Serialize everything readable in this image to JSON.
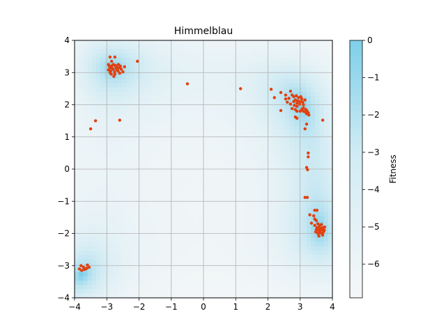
{
  "chart_data": {
    "type": "scatter",
    "title": "Himmelblau",
    "xlabel": "",
    "ylabel": "",
    "xlim": [
      -4,
      4
    ],
    "ylim": [
      -4,
      4
    ],
    "xticks": [
      -4,
      -3,
      -2,
      -1,
      0,
      1,
      2,
      3,
      4
    ],
    "yticks": [
      -4,
      -3,
      -2,
      -1,
      0,
      1,
      2,
      3,
      4
    ],
    "grid": true,
    "background_heatmap": {
      "description": "Fitness landscape shading (negative Himmelblau, log-scaled)",
      "minima": [
        [
          3.0,
          2.0
        ],
        [
          -2.805,
          3.131
        ],
        [
          -3.779,
          -3.283
        ],
        [
          3.584,
          -1.848
        ]
      ]
    },
    "colorbar": {
      "label": "Fitness",
      "range": [
        -6.9,
        0
      ],
      "ticks": [
        0,
        -1,
        -2,
        -3,
        -4,
        -5,
        -6
      ],
      "tick_labels": [
        "0",
        "−1",
        "−2",
        "−3",
        "−4",
        "−5",
        "−6"
      ],
      "color_high": "#7ecfe9",
      "color_low": "#f5f7f8"
    },
    "colors": {
      "points": "#e2400e",
      "grid": "#b0b0b0"
    },
    "series": [
      {
        "points": [
          [
            -2.9,
            3.48
          ],
          [
            -2.75,
            3.48
          ],
          [
            -2.95,
            3.25
          ],
          [
            -2.85,
            3.35
          ],
          [
            -2.8,
            3.1
          ],
          [
            -2.7,
            3.2
          ],
          [
            -2.6,
            3.15
          ],
          [
            -2.9,
            3.0
          ],
          [
            -2.75,
            2.95
          ],
          [
            -2.65,
            3.05
          ],
          [
            -2.55,
            3.1
          ],
          [
            -2.85,
            3.2
          ],
          [
            -2.8,
            3.25
          ],
          [
            -2.72,
            3.18
          ],
          [
            -2.68,
            3.08
          ],
          [
            -2.9,
            3.15
          ],
          [
            -2.95,
            3.08
          ],
          [
            -2.6,
            2.98
          ],
          [
            -2.5,
            3.02
          ],
          [
            -2.78,
            2.88
          ],
          [
            -2.82,
            3.12
          ],
          [
            -2.74,
            3.22
          ],
          [
            -2.64,
            3.25
          ],
          [
            -2.88,
            3.05
          ],
          [
            -2.7,
            3.12
          ],
          [
            -2.76,
            3.02
          ],
          [
            -2.86,
            2.95
          ],
          [
            -2.66,
            3.14
          ],
          [
            -2.58,
            3.2
          ],
          [
            -2.92,
            3.2
          ],
          [
            -2.45,
            3.18
          ],
          [
            -2.05,
            3.35
          ],
          [
            -2.6,
            1.52
          ],
          [
            -3.35,
            1.5
          ],
          [
            -3.5,
            1.25
          ],
          [
            -0.5,
            2.65
          ],
          [
            1.15,
            2.5
          ],
          [
            2.1,
            2.48
          ],
          [
            2.2,
            2.22
          ],
          [
            2.4,
            2.38
          ],
          [
            2.4,
            1.82
          ],
          [
            2.55,
            2.3
          ],
          [
            2.6,
            2.08
          ],
          [
            2.55,
            2.18
          ],
          [
            2.7,
            2.42
          ],
          [
            2.65,
            2.2
          ],
          [
            2.7,
            2.02
          ],
          [
            2.75,
            1.88
          ],
          [
            2.8,
            2.25
          ],
          [
            2.85,
            2.15
          ],
          [
            2.9,
            2.05
          ],
          [
            2.95,
            2.22
          ],
          [
            2.8,
            2.1
          ],
          [
            2.9,
            1.95
          ],
          [
            3.0,
            2.1
          ],
          [
            3.05,
            2.18
          ],
          [
            3.1,
            2.0
          ],
          [
            2.75,
            2.3
          ],
          [
            2.88,
            2.28
          ],
          [
            2.98,
            2.02
          ],
          [
            2.82,
            1.98
          ],
          [
            2.92,
            2.12
          ],
          [
            3.02,
            2.25
          ],
          [
            3.08,
            2.08
          ],
          [
            3.15,
            2.15
          ],
          [
            2.85,
            1.85
          ],
          [
            2.9,
            1.8
          ],
          [
            3.0,
            1.8
          ],
          [
            3.05,
            1.85
          ],
          [
            3.1,
            1.8
          ],
          [
            3.15,
            1.78
          ],
          [
            3.2,
            1.82
          ],
          [
            3.25,
            1.75
          ],
          [
            3.1,
            1.9
          ],
          [
            3.18,
            1.85
          ],
          [
            3.22,
            1.78
          ],
          [
            3.27,
            1.68
          ],
          [
            3.2,
            1.72
          ],
          [
            2.85,
            1.62
          ],
          [
            2.9,
            1.58
          ],
          [
            3.2,
            1.4
          ],
          [
            3.15,
            1.25
          ],
          [
            3.7,
            1.52
          ],
          [
            3.25,
            0.5
          ],
          [
            3.25,
            0.38
          ],
          [
            3.2,
            0.05
          ],
          [
            3.23,
            -0.02
          ],
          [
            3.15,
            -0.88
          ],
          [
            3.22,
            -0.88
          ],
          [
            3.45,
            -1.28
          ],
          [
            3.52,
            -1.28
          ],
          [
            3.3,
            -1.42
          ],
          [
            3.42,
            -1.45
          ],
          [
            3.35,
            -1.68
          ],
          [
            3.45,
            -1.55
          ],
          [
            3.5,
            -1.6
          ],
          [
            3.55,
            -1.7
          ],
          [
            3.45,
            -1.75
          ],
          [
            3.6,
            -1.8
          ],
          [
            3.65,
            -1.85
          ],
          [
            3.7,
            -1.82
          ],
          [
            3.75,
            -1.9
          ],
          [
            3.58,
            -1.92
          ],
          [
            3.62,
            -1.98
          ],
          [
            3.68,
            -2.0
          ],
          [
            3.55,
            -2.0
          ],
          [
            3.5,
            -1.88
          ],
          [
            3.72,
            -1.95
          ],
          [
            3.6,
            -1.75
          ],
          [
            3.52,
            -1.82
          ],
          [
            3.66,
            -1.72
          ],
          [
            3.7,
            -2.05
          ],
          [
            3.58,
            -2.08
          ],
          [
            3.48,
            -1.95
          ],
          [
            3.76,
            -1.8
          ],
          [
            3.63,
            -1.9
          ],
          [
            3.56,
            -1.85
          ],
          [
            3.69,
            -1.88
          ],
          [
            -3.85,
            -3.1
          ],
          [
            -3.78,
            -3.15
          ],
          [
            -3.72,
            -3.05
          ],
          [
            -3.65,
            -3.1
          ],
          [
            -3.6,
            -2.98
          ],
          [
            -3.55,
            -3.05
          ],
          [
            -3.8,
            -3.0
          ],
          [
            -3.7,
            -3.12
          ],
          [
            -3.62,
            -3.08
          ]
        ]
      }
    ]
  }
}
